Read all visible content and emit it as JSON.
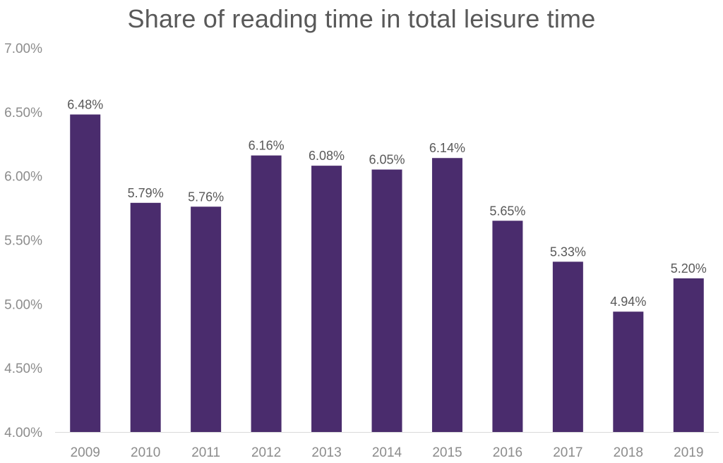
{
  "chart_data": {
    "type": "bar",
    "title": "Share of reading time in total leisure time",
    "categories": [
      "2009",
      "2010",
      "2011",
      "2012",
      "2013",
      "2014",
      "2015",
      "2016",
      "2017",
      "2018",
      "2019"
    ],
    "values": [
      6.48,
      5.79,
      5.76,
      6.16,
      6.08,
      6.05,
      6.14,
      5.65,
      5.33,
      4.94,
      5.2
    ],
    "data_labels": [
      "6.48%",
      "5.79%",
      "5.76%",
      "6.16%",
      "6.08%",
      "6.05%",
      "6.14%",
      "5.65%",
      "5.33%",
      "4.94%",
      "5.20%"
    ],
    "y_ticks": [
      4.0,
      4.5,
      5.0,
      5.5,
      6.0,
      6.5,
      7.0
    ],
    "y_tick_labels": [
      "4.00%",
      "4.50%",
      "5.00%",
      "5.50%",
      "6.00%",
      "6.50%",
      "7.00%"
    ],
    "ylim": [
      4.0,
      7.0
    ],
    "grid": false,
    "legend": "none",
    "bar_color": "#4a2c6d",
    "axis_color": "#d9d9d9"
  }
}
